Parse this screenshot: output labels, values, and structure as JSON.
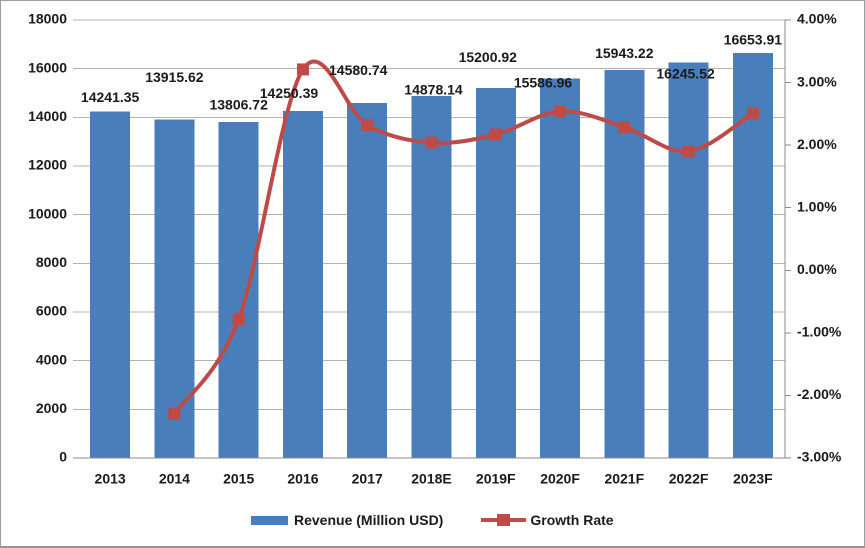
{
  "chart_data": {
    "type": "bar",
    "title": "",
    "categories": [
      "2013",
      "2014",
      "2015",
      "2016",
      "2017",
      "2018E",
      "2019F",
      "2020F",
      "2021F",
      "2022F",
      "2023F"
    ],
    "series": [
      {
        "name": "Revenue (Million USD)",
        "type": "bar",
        "axis": "left",
        "color": "#4A7EBB",
        "values": [
          14241.35,
          13915.62,
          13806.72,
          14250.39,
          14580.74,
          14878.14,
          15200.92,
          15586.96,
          15943.22,
          16245.52,
          16653.91
        ],
        "data_labels": [
          "14241.35",
          "13915.62",
          "13806.72",
          "14250.39",
          "14580.74",
          "14878.14",
          "15200.92",
          "15586.96",
          "15943.22",
          "16245.52",
          "16653.91"
        ]
      },
      {
        "name": "Growth Rate",
        "type": "line",
        "axis": "right",
        "color": "#BE4B48",
        "marker": "square",
        "smooth": true,
        "values": [
          null,
          -2.29,
          -0.78,
          3.21,
          2.32,
          2.04,
          2.17,
          2.54,
          2.29,
          1.9,
          2.51
        ]
      }
    ],
    "left_axis": {
      "min": 0,
      "max": 18000,
      "tick_values": [
        0,
        2000,
        4000,
        6000,
        8000,
        10000,
        12000,
        14000,
        16000,
        18000
      ],
      "tick_labels": [
        "0",
        "2000",
        "4000",
        "6000",
        "8000",
        "10000",
        "12000",
        "14000",
        "16000",
        "18000"
      ]
    },
    "right_axis": {
      "min": -3,
      "max": 4,
      "tick_values": [
        -3,
        -2,
        -1,
        0,
        1,
        2,
        3,
        4
      ],
      "tick_labels": [
        "-3.00%",
        "-2.00%",
        "-1.00%",
        "0.00%",
        "1.00%",
        "2.00%",
        "3.00%",
        "4.00%"
      ]
    },
    "grid": true,
    "legend_position": "bottom"
  },
  "colors": {
    "bar": "#4A7EBB",
    "line": "#BE4B48",
    "gridline": "#b3b3b3",
    "axis_line": "#8c8c8c",
    "text": "#1a1a1a",
    "background": "#ffffff",
    "border": "#9d9d9d"
  }
}
